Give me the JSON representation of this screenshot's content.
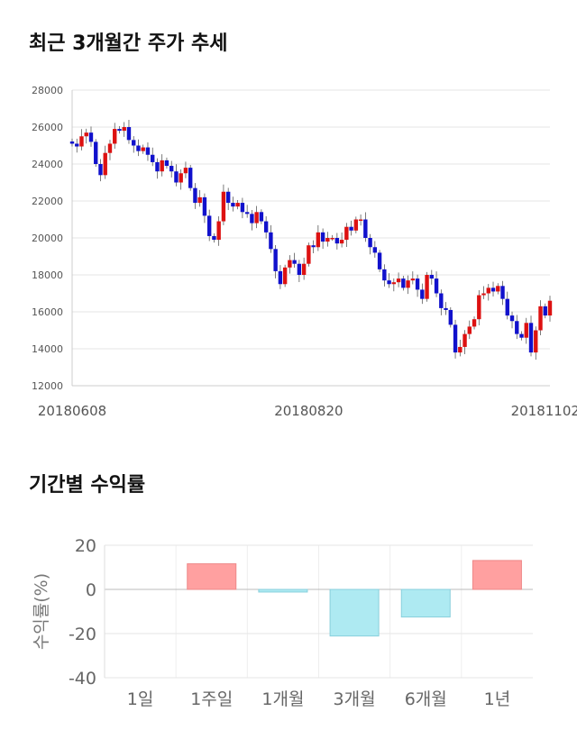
{
  "sections": {
    "trend_title": "최근 3개월간 주가 추세",
    "returns_title": "기간별 수익률"
  },
  "chart_data": [
    {
      "type": "candlestick",
      "ylim": [
        12000,
        28000
      ],
      "yticks": [
        12000,
        14000,
        16000,
        18000,
        20000,
        22000,
        24000,
        26000,
        28000
      ],
      "xticks": [
        {
          "label": "20180608",
          "index": 0
        },
        {
          "label": "20180820",
          "index": 50
        },
        {
          "label": "20181102",
          "index": 100
        }
      ],
      "up_color": "#dd1111",
      "down_color": "#1111cc",
      "closes": [
        25100,
        24950,
        25500,
        25700,
        25200,
        24000,
        23400,
        24600,
        25100,
        25900,
        25800,
        26000,
        25300,
        25000,
        24700,
        24900,
        24500,
        24100,
        23600,
        24200,
        23900,
        23600,
        23000,
        23500,
        23800,
        22700,
        21900,
        22200,
        21200,
        20100,
        19900,
        20900,
        22500,
        21900,
        21700,
        21900,
        21400,
        21300,
        20800,
        21400,
        20900,
        20300,
        19400,
        18200,
        17500,
        18400,
        18800,
        18600,
        18000,
        18600,
        19600,
        19500,
        20300,
        19800,
        20000,
        20000,
        19700,
        19900,
        20600,
        20400,
        21000,
        21000,
        20000,
        19500,
        19200,
        18300,
        17700,
        17500,
        17600,
        17800,
        17300,
        17700,
        17800,
        17200,
        16700,
        18000,
        17800,
        17000,
        16200,
        16100,
        15300,
        13800,
        14100,
        14800,
        15200,
        15600,
        16900,
        17000,
        17300,
        17100,
        17400,
        16700,
        15800,
        15500,
        14800,
        14600,
        15400,
        13800,
        15000,
        16300,
        15800,
        16600
      ]
    },
    {
      "type": "bar",
      "categories": [
        "1일",
        "1주일",
        "1개월",
        "3개월",
        "6개월",
        "1년"
      ],
      "values": [
        0,
        11.6,
        -1.2,
        -21.1,
        -12.5,
        13.1
      ],
      "ylabel": "수익률(%)",
      "ylim": [
        -40,
        20
      ],
      "yticks": [
        20,
        0,
        -20,
        -40
      ],
      "pos_color": "#ffa0a0",
      "neg_color": "#aeeaf2"
    }
  ]
}
